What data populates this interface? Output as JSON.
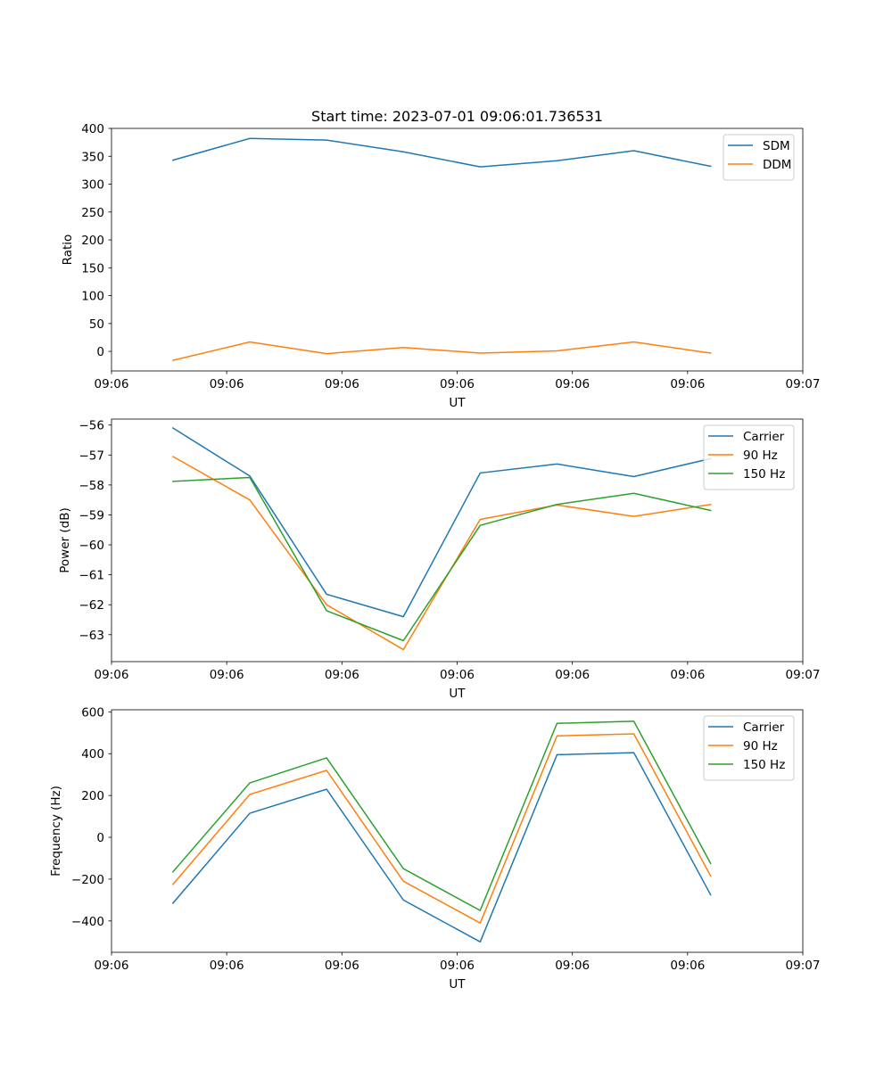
{
  "figure_title": "Start time: 2023-07-01 09:06:01.736531",
  "colors": {
    "blue": "#1f77b4",
    "orange": "#ff7f0e",
    "green": "#2ca02c",
    "axis": "#000000",
    "legend_border": "#cccccc",
    "background": "#ffffff"
  },
  "chart_data": [
    {
      "type": "line",
      "title": "Start time: 2023-07-01 09:06:01.736531",
      "xlabel": "UT",
      "ylabel": "Ratio",
      "x": [
        1,
        2,
        3,
        4,
        5,
        6,
        7,
        8
      ],
      "xlim": [
        0.2,
        9.2
      ],
      "x_ticks": [
        0.2,
        1.7,
        3.2,
        4.7,
        6.2,
        7.7,
        9.2
      ],
      "x_tick_labels": [
        "09:06",
        "09:06",
        "09:06",
        "09:06",
        "09:06",
        "09:06",
        "09:07"
      ],
      "ylim": [
        -35,
        400
      ],
      "y_ticks": [
        0,
        50,
        100,
        150,
        200,
        250,
        300,
        350,
        400
      ],
      "y_tick_labels": [
        "0",
        "50",
        "100",
        "150",
        "200",
        "250",
        "300",
        "350",
        "400"
      ],
      "legend_position": "top-right",
      "series": [
        {
          "name": "SDM",
          "color": "#1f77b4",
          "values": [
            343,
            382,
            379,
            358,
            331,
            342,
            360,
            332
          ]
        },
        {
          "name": "DDM",
          "color": "#ff7f0e",
          "values": [
            -16,
            17,
            -4,
            7,
            -3,
            1,
            17,
            -3
          ]
        }
      ]
    },
    {
      "type": "line",
      "title": "",
      "xlabel": "UT",
      "ylabel": "Power (dB)",
      "x": [
        1,
        2,
        3,
        4,
        5,
        6,
        7,
        8
      ],
      "xlim": [
        0.2,
        9.2
      ],
      "x_ticks": [
        0.2,
        1.7,
        3.2,
        4.7,
        6.2,
        7.7,
        9.2
      ],
      "x_tick_labels": [
        "09:06",
        "09:06",
        "09:06",
        "09:06",
        "09:06",
        "09:06",
        "09:07"
      ],
      "ylim": [
        -63.9,
        -55.8
      ],
      "y_ticks": [
        -63,
        -62,
        -61,
        -60,
        -59,
        -58,
        -57,
        -56
      ],
      "y_tick_labels": [
        "−63",
        "−62",
        "−61",
        "−60",
        "−59",
        "−58",
        "−57",
        "−56"
      ],
      "legend_position": "top-right",
      "series": [
        {
          "name": "Carrier",
          "color": "#1f77b4",
          "values": [
            -56.1,
            -57.7,
            -61.65,
            -62.4,
            -57.6,
            -57.3,
            -57.72,
            -57.12
          ]
        },
        {
          "name": "90 Hz",
          "color": "#ff7f0e",
          "values": [
            -57.05,
            -58.5,
            -62.0,
            -63.5,
            -59.15,
            -58.67,
            -59.05,
            -58.65
          ]
        },
        {
          "name": "150 Hz",
          "color": "#2ca02c",
          "values": [
            -57.88,
            -57.75,
            -62.2,
            -63.2,
            -59.35,
            -58.65,
            -58.28,
            -58.85
          ]
        }
      ]
    },
    {
      "type": "line",
      "title": "",
      "xlabel": "UT",
      "ylabel": "Frequency (Hz)",
      "x": [
        1,
        2,
        3,
        4,
        5,
        6,
        7,
        8
      ],
      "xlim": [
        0.2,
        9.2
      ],
      "x_ticks": [
        0.2,
        1.7,
        3.2,
        4.7,
        6.2,
        7.7,
        9.2
      ],
      "x_tick_labels": [
        "09:06",
        "09:06",
        "09:06",
        "09:06",
        "09:06",
        "09:06",
        "09:07"
      ],
      "ylim": [
        -550,
        610
      ],
      "y_ticks": [
        -400,
        -200,
        0,
        200,
        400,
        600
      ],
      "y_tick_labels": [
        "−400",
        "−200",
        "0",
        "200",
        "400",
        "600"
      ],
      "legend_position": "top-right",
      "series": [
        {
          "name": "Carrier",
          "color": "#1f77b4",
          "values": [
            -315,
            115,
            230,
            -300,
            -500,
            395,
            405,
            -275
          ]
        },
        {
          "name": "90 Hz",
          "color": "#ff7f0e",
          "values": [
            -225,
            205,
            320,
            -210,
            -410,
            485,
            495,
            -185
          ]
        },
        {
          "name": "150 Hz",
          "color": "#2ca02c",
          "values": [
            -165,
            260,
            380,
            -150,
            -350,
            545,
            555,
            -125
          ]
        }
      ]
    }
  ]
}
